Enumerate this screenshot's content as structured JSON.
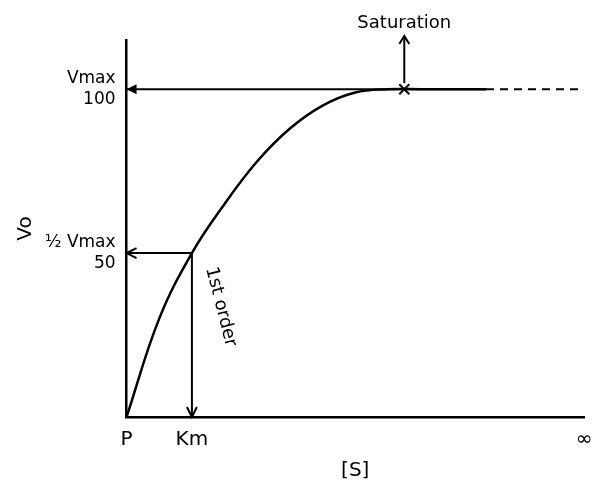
{
  "chart_data": {
    "type": "line",
    "x_label": "[S]",
    "y_label": "Vo",
    "x": [
      0,
      1,
      2,
      3,
      4,
      5,
      6,
      7,
      8,
      9,
      10,
      11
    ],
    "values": [
      0,
      30,
      50,
      65,
      78,
      88,
      95,
      99,
      100,
      100,
      100,
      100
    ],
    "color": "#000000",
    "xlim": [
      0,
      14
    ],
    "xticks": [
      {
        "value": 0,
        "label": "P"
      },
      {
        "value": 2,
        "label": "Km"
      },
      {
        "value": 14,
        "label": "∞"
      }
    ],
    "ylim": [
      0,
      115
    ],
    "yticks": [
      {
        "value": 50,
        "label": [
          "½ Vmax",
          "50"
        ]
      },
      {
        "value": 100,
        "label": [
          "Vmax",
          "100"
        ]
      }
    ],
    "asymptote": 100,
    "guides": [
      {
        "x": 2,
        "y": 50
      }
    ],
    "annotations": [
      {
        "text": "Saturation",
        "x": 8.5,
        "y": 100,
        "marker": "x"
      },
      {
        "text": "1st order",
        "x": 2,
        "y": 45
      }
    ],
    "grid": false
  }
}
